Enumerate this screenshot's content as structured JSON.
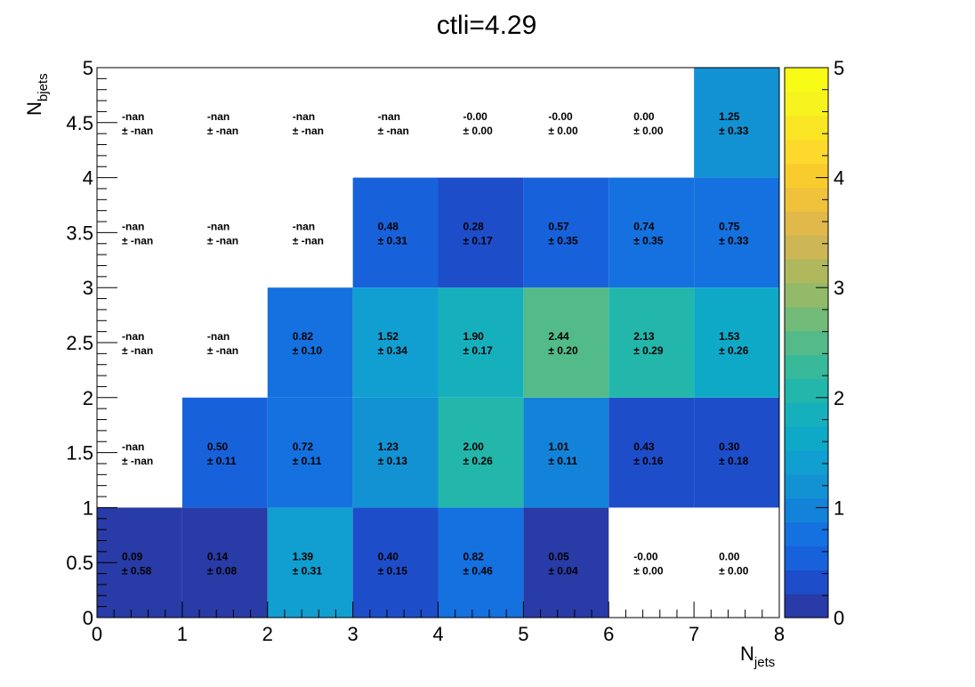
{
  "chart_data": {
    "type": "heatmap",
    "title": "ctli=4.29",
    "xlabel": "N",
    "xlabel_sub": "jets",
    "ylabel": "N",
    "ylabel_sub": "bjets",
    "xlim": [
      0,
      8
    ],
    "ylim": [
      0,
      5
    ],
    "x_edges": [
      0,
      1,
      2,
      3,
      4,
      5,
      6,
      7,
      8
    ],
    "y_edges": [
      0,
      1,
      2,
      3,
      4,
      5
    ],
    "x_ticks": [
      "0",
      "1",
      "2",
      "3",
      "4",
      "5",
      "6",
      "7",
      "8"
    ],
    "y_ticks": [
      "0",
      "0.5",
      "1",
      "1.5",
      "2",
      "2.5",
      "3",
      "3.5",
      "4",
      "4.5",
      "5"
    ],
    "z_range": [
      0,
      5
    ],
    "z_ticks": [
      "0",
      "1",
      "2",
      "3",
      "4",
      "5"
    ],
    "rows": [
      {
        "values": [
          "0.09",
          "0.14",
          "1.39",
          "0.40",
          "0.82",
          "0.05",
          "-0.00",
          "0.00"
        ],
        "errors": [
          "0.58",
          "0.08",
          "0.31",
          "0.15",
          "0.46",
          "0.04",
          "0.00",
          "0.00"
        ]
      },
      {
        "values": [
          "-nan",
          "0.50",
          "0.72",
          "1.23",
          "2.00",
          "1.01",
          "0.43",
          "0.30"
        ],
        "errors": [
          "-nan",
          "0.11",
          "0.11",
          "0.13",
          "0.26",
          "0.11",
          "0.16",
          "0.18"
        ]
      },
      {
        "values": [
          "-nan",
          "-nan",
          "0.82",
          "1.52",
          "1.90",
          "2.44",
          "2.13",
          "1.53"
        ],
        "errors": [
          "-nan",
          "-nan",
          "0.10",
          "0.34",
          "0.17",
          "0.20",
          "0.29",
          "0.26"
        ]
      },
      {
        "values": [
          "-nan",
          "-nan",
          "-nan",
          "0.48",
          "0.28",
          "0.57",
          "0.74",
          "0.75"
        ],
        "errors": [
          "-nan",
          "-nan",
          "-nan",
          "0.31",
          "0.17",
          "0.35",
          "0.35",
          "0.33"
        ]
      },
      {
        "values": [
          "-nan",
          "-nan",
          "-nan",
          "-nan",
          "-0.00",
          "-0.00",
          "0.00",
          "1.25"
        ],
        "errors": [
          "-nan",
          "-nan",
          "-nan",
          "-nan",
          "0.00",
          "0.00",
          "0.00",
          "0.33"
        ]
      }
    ],
    "palette": [
      "#283ba6",
      "#1e4dca",
      "#1762db",
      "#1471df",
      "#1283d8",
      "#1292d3",
      "#119ed0",
      "#0fa9c8",
      "#16b0bd",
      "#23b6ab",
      "#38b99a",
      "#53bb89",
      "#73bb78",
      "#93ba69",
      "#b0b85e",
      "#ccb656",
      "#e1b94b",
      "#f0c23c",
      "#f9cc2e",
      "#fcd92a",
      "#f9e524",
      "#f7f31f",
      "#f8fb15"
    ],
    "grid": false,
    "legend": "right colorbar"
  }
}
